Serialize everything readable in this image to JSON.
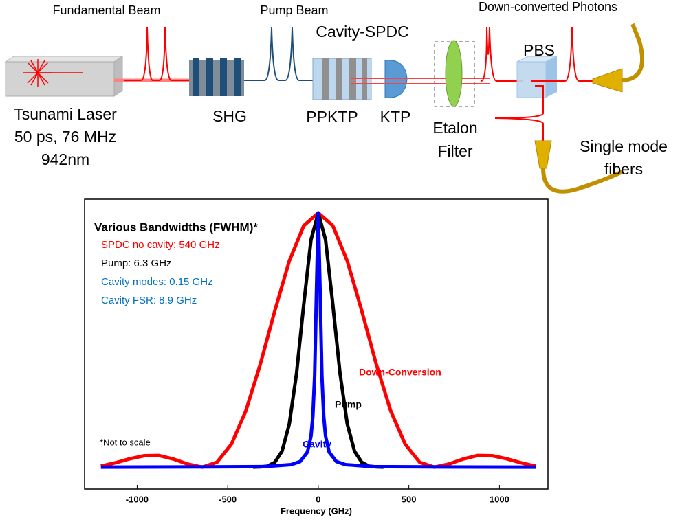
{
  "diagram": {
    "top_labels": [
      "Fundamental Beam",
      "Pump Beam",
      "Down-converted Photons"
    ],
    "cavity_label": "Cavity-SPDC",
    "pbs_label": "PBS",
    "laser_lines": [
      "Tsunami Laser",
      "50 ps, 76 MHz",
      "942nm"
    ],
    "shg_label": "SHG",
    "ppktp_label": "PPKTP",
    "ktp_label": "KTP",
    "etalon_lines": [
      "Etalon",
      "Filter"
    ],
    "fiber_lines": [
      "Single mode",
      "fibers"
    ]
  },
  "chart_data": {
    "type": "line",
    "x_label": "Frequency (GHz)",
    "annotation_title": "Various Bandwidths (FWHM)*",
    "annotations": [
      {
        "text": "SPDC no cavity: 540 GHz",
        "color": "#ff0000"
      },
      {
        "text": "Pump: 6.3 GHz",
        "color": "#000000"
      },
      {
        "text": "Cavity modes: 0.15 GHz",
        "color": "#0070c0"
      },
      {
        "text": "Cavity FSR: 8.9 GHz",
        "color": "#0070c0"
      }
    ],
    "note": "*Not to scale",
    "xlim": [
      -1290,
      1268
    ],
    "ylim": [
      -0.086,
      1.054
    ],
    "xticks": [
      -1000,
      -500,
      0,
      500,
      1000
    ],
    "series": [
      {
        "name": "Down-Conversion",
        "color": "#ff0000",
        "x": [
          -1200,
          -1120,
          -1040,
          -960,
          -880,
          -800,
          -720,
          -640,
          -560,
          -480,
          -400,
          -320,
          -240,
          -160,
          -80,
          0,
          80,
          160,
          240,
          320,
          400,
          480,
          560,
          640,
          720,
          800,
          880,
          960,
          1040,
          1120,
          1200
        ],
        "values": [
          0.004,
          0.017,
          0.033,
          0.045,
          0.046,
          0.032,
          0.012,
          0,
          0.019,
          0.09,
          0.221,
          0.405,
          0.615,
          0.811,
          0.95,
          1,
          0.95,
          0.811,
          0.615,
          0.405,
          0.221,
          0.09,
          0.019,
          0,
          0.012,
          0.032,
          0.046,
          0.045,
          0.033,
          0.017,
          0.004
        ]
      },
      {
        "name": "Pump",
        "color": "#000000",
        "x": [
          -360,
          -320,
          -280,
          -240,
          -200,
          -160,
          -120,
          -80,
          -40,
          0,
          40,
          80,
          120,
          160,
          200,
          240,
          280,
          320,
          360
        ],
        "values": [
          0,
          0.001,
          0.004,
          0.019,
          0.063,
          0.17,
          0.369,
          0.642,
          0.895,
          1,
          0.895,
          0.642,
          0.369,
          0.17,
          0.063,
          0.019,
          0.004,
          0.001,
          0
        ]
      },
      {
        "name": "Cavity",
        "color": "#0000ff",
        "x": [
          -1200,
          -600,
          -300,
          -150,
          -100,
          -60,
          -40,
          -30,
          -20,
          -10,
          0,
          10,
          20,
          30,
          40,
          60,
          100,
          150,
          300,
          600,
          1200
        ],
        "values": [
          0,
          0.001,
          0.002,
          0.01,
          0.022,
          0.059,
          0.123,
          0.2,
          0.36,
          0.692,
          1,
          0.692,
          0.36,
          0.2,
          0.123,
          0.059,
          0.022,
          0.01,
          0.002,
          0.001,
          0
        ]
      }
    ]
  }
}
